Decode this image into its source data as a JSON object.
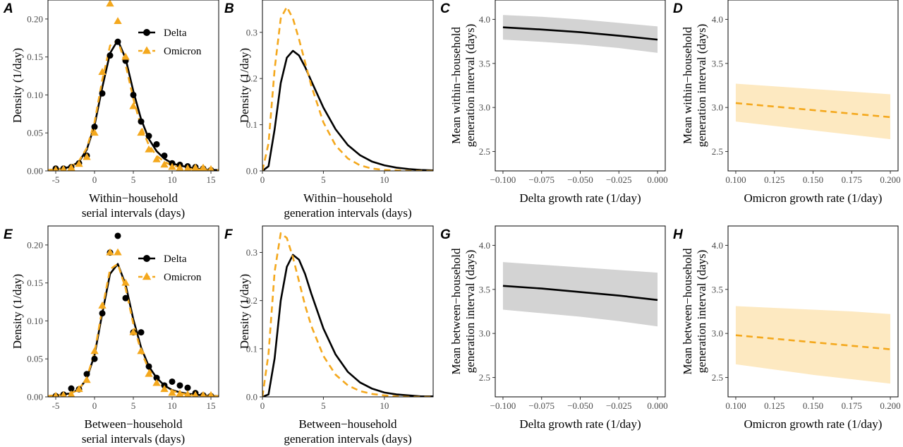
{
  "colors": {
    "delta": "#000000",
    "omicron": "#f4a81d",
    "delta_band": "#d3d3d3",
    "omicron_band": "#fde9c1"
  },
  "chart_data": [
    {
      "panel": "A",
      "type": "line+scatter",
      "xlabel": [
        "Within−household",
        "serial intervals (days)"
      ],
      "ylabel": [
        "Density (1/day)"
      ],
      "xlim": [
        -6,
        16
      ],
      "ylim": [
        0,
        0.225
      ],
      "xticks": [
        -5,
        0,
        5,
        10,
        15
      ],
      "yticks": [
        0,
        0.05,
        0.1,
        0.15,
        0.2
      ],
      "ytick_labels": [
        "0.00",
        "0.05",
        "0.10",
        "0.15",
        "0.20"
      ],
      "legend": {
        "position": "top-right",
        "entries": [
          "Delta",
          "Omicron"
        ]
      },
      "series": [
        {
          "name": "Delta",
          "style": "line-solid",
          "x": [
            -6,
            -5,
            -4,
            -3,
            -2,
            -1,
            0,
            1,
            2,
            3,
            4,
            5,
            6,
            7,
            8,
            9,
            10,
            11,
            12,
            13,
            14,
            15,
            16
          ],
          "values": [
            0.001,
            0.002,
            0.003,
            0.006,
            0.012,
            0.028,
            0.06,
            0.11,
            0.155,
            0.172,
            0.148,
            0.105,
            0.068,
            0.042,
            0.026,
            0.016,
            0.01,
            0.007,
            0.005,
            0.003,
            0.002,
            0.0015,
            0.001
          ]
        },
        {
          "name": "Delta",
          "style": "points-circle",
          "x": [
            -5,
            -4,
            -3,
            -2,
            -1,
            0,
            1,
            2,
            3,
            4,
            5,
            6,
            7,
            8,
            9,
            10,
            11,
            12,
            13,
            14,
            15
          ],
          "values": [
            0.003,
            0.003,
            0.005,
            0.01,
            0.02,
            0.058,
            0.102,
            0.152,
            0.17,
            0.145,
            0.1,
            0.065,
            0.046,
            0.035,
            0.02,
            0.01,
            0.008,
            0.006,
            0.005,
            0.003,
            0.001
          ]
        },
        {
          "name": "Omicron",
          "style": "line-dashed",
          "x": [
            -6,
            -5,
            -4,
            -3,
            -2,
            -1,
            0,
            1,
            2,
            3,
            4,
            5,
            6,
            7,
            8,
            9,
            10,
            11,
            12,
            13,
            14,
            15,
            16
          ],
          "values": [
            0.001,
            0.002,
            0.003,
            0.006,
            0.013,
            0.03,
            0.064,
            0.12,
            0.165,
            0.172,
            0.14,
            0.095,
            0.058,
            0.034,
            0.02,
            0.012,
            0.007,
            0.005,
            0.003,
            0.002,
            0.0015,
            0.001,
            0.001
          ]
        },
        {
          "name": "Omicron",
          "style": "points-triangle",
          "x": [
            -5,
            -4,
            -3,
            -2,
            -1,
            0,
            1,
            2,
            3,
            4,
            5,
            6,
            7,
            8,
            9,
            10,
            11,
            12,
            13,
            14,
            15
          ],
          "values": [
            0.001,
            0.002,
            0.004,
            0.009,
            0.018,
            0.05,
            0.13,
            0.22,
            0.197,
            0.15,
            0.085,
            0.05,
            0.028,
            0.015,
            0.008,
            0.005,
            0.004,
            0.003,
            0.004,
            0.004,
            0.002
          ]
        }
      ]
    },
    {
      "panel": "B",
      "type": "line",
      "xlabel": [
        "Within−household",
        "generation intervals (days)"
      ],
      "ylabel": [
        "Density (1/day)"
      ],
      "xlim": [
        0,
        14
      ],
      "ylim": [
        0,
        0.37
      ],
      "xticks": [
        0,
        5,
        10
      ],
      "yticks": [
        0,
        0.1,
        0.2,
        0.3
      ],
      "ytick_labels": [
        "0.0",
        "0.1",
        "0.2",
        "0.3"
      ],
      "series": [
        {
          "name": "Delta",
          "style": "line-solid",
          "x": [
            0,
            0.5,
            1,
            1.5,
            2,
            2.5,
            3,
            3.5,
            4,
            5,
            6,
            7,
            8,
            9,
            10,
            11,
            12,
            13,
            14
          ],
          "values": [
            0,
            0.01,
            0.09,
            0.19,
            0.245,
            0.26,
            0.25,
            0.225,
            0.195,
            0.137,
            0.09,
            0.056,
            0.034,
            0.02,
            0.012,
            0.007,
            0.004,
            0.002,
            0.001
          ]
        },
        {
          "name": "Omicron",
          "style": "line-dashed",
          "x": [
            0,
            0.5,
            1,
            1.5,
            2,
            2.5,
            3,
            3.5,
            4,
            5,
            6,
            7,
            8,
            9,
            10,
            11,
            12,
            13,
            14
          ],
          "values": [
            0,
            0.06,
            0.22,
            0.33,
            0.355,
            0.33,
            0.285,
            0.235,
            0.185,
            0.105,
            0.055,
            0.027,
            0.012,
            0.005,
            0.002,
            0.001,
            0,
            0,
            0
          ]
        }
      ]
    },
    {
      "panel": "C",
      "type": "line",
      "xlabel": [
        "Delta growth rate (1/day)"
      ],
      "ylabel": [
        "Mean within−household",
        "generation interval (days)"
      ],
      "xlim": [
        -0.105,
        0.005
      ],
      "ylim": [
        2.28,
        4.22
      ],
      "xticks": [
        -0.1,
        -0.075,
        -0.05,
        -0.025,
        0
      ],
      "xtick_labels": [
        "−0.100",
        "−0.075",
        "−0.050",
        "−0.025",
        "0.000"
      ],
      "yticks": [
        2.5,
        3.0,
        3.5,
        4.0
      ],
      "ytick_labels": [
        "2.5",
        "3.0",
        "3.5",
        "4.0"
      ],
      "series": [
        {
          "name": "Delta",
          "style": "line-solid-band",
          "x": [
            -0.1,
            -0.075,
            -0.05,
            -0.025,
            0
          ],
          "values": [
            3.91,
            3.885,
            3.855,
            3.815,
            3.77
          ],
          "lower": [
            3.77,
            3.745,
            3.715,
            3.675,
            3.62
          ],
          "upper": [
            4.05,
            4.03,
            4.0,
            3.96,
            3.92
          ]
        }
      ]
    },
    {
      "panel": "D",
      "type": "line",
      "xlabel": [
        "Omicron growth rate (1/day)"
      ],
      "ylabel": [
        "Mean within−household",
        "generation interval (days)"
      ],
      "xlim": [
        0.095,
        0.205
      ],
      "ylim": [
        2.28,
        4.22
      ],
      "xticks": [
        0.1,
        0.125,
        0.15,
        0.175,
        0.2
      ],
      "xtick_labels": [
        "0.100",
        "0.125",
        "0.150",
        "0.175",
        "0.200"
      ],
      "yticks": [
        2.5,
        3.0,
        3.5,
        4.0
      ],
      "ytick_labels": [
        "2.5",
        "3.0",
        "3.5",
        "4.0"
      ],
      "series": [
        {
          "name": "Omicron",
          "style": "line-dashed-band",
          "x": [
            0.1,
            0.125,
            0.15,
            0.175,
            0.2
          ],
          "values": [
            3.05,
            3.01,
            2.97,
            2.93,
            2.89
          ],
          "lower": [
            2.84,
            2.79,
            2.74,
            2.69,
            2.64
          ],
          "upper": [
            3.27,
            3.24,
            3.21,
            3.18,
            3.15
          ]
        }
      ]
    },
    {
      "panel": "E",
      "type": "line+scatter",
      "xlabel": [
        "Between−household",
        "serial intervals (days)"
      ],
      "ylabel": [
        "Density (1/day)"
      ],
      "xlim": [
        -6,
        16
      ],
      "ylim": [
        0,
        0.225
      ],
      "xticks": [
        -5,
        0,
        5,
        10,
        15
      ],
      "yticks": [
        0,
        0.05,
        0.1,
        0.15,
        0.2
      ],
      "ytick_labels": [
        "0.00",
        "0.05",
        "0.10",
        "0.15",
        "0.20"
      ],
      "legend": {
        "position": "top-right",
        "entries": [
          "Delta",
          "Omicron"
        ]
      },
      "series": [
        {
          "name": "Delta",
          "style": "line-solid",
          "x": [
            -6,
            -5,
            -4,
            -3,
            -2,
            -1,
            0,
            1,
            2,
            3,
            4,
            5,
            6,
            7,
            8,
            9,
            10,
            11,
            12,
            13,
            14,
            15,
            16
          ],
          "values": [
            0.001,
            0.002,
            0.003,
            0.005,
            0.01,
            0.024,
            0.055,
            0.11,
            0.162,
            0.175,
            0.148,
            0.102,
            0.065,
            0.04,
            0.025,
            0.015,
            0.009,
            0.006,
            0.004,
            0.003,
            0.002,
            0.0015,
            0.001
          ]
        },
        {
          "name": "Delta",
          "style": "points-circle",
          "x": [
            -5,
            -4,
            -3,
            -2,
            -1,
            0,
            1,
            2,
            3,
            4,
            5,
            6,
            7,
            8,
            9,
            10,
            11,
            12,
            13,
            14,
            15
          ],
          "values": [
            0.001,
            0.003,
            0.011,
            0.01,
            0.03,
            0.05,
            0.11,
            0.19,
            0.212,
            0.13,
            0.085,
            0.085,
            0.04,
            0.025,
            0.015,
            0.02,
            0.015,
            0.012,
            0.005,
            0.002,
            0.001
          ]
        },
        {
          "name": "Omicron",
          "style": "line-dashed",
          "x": [
            -6,
            -5,
            -4,
            -3,
            -2,
            -1,
            0,
            1,
            2,
            3,
            4,
            5,
            6,
            7,
            8,
            9,
            10,
            11,
            12,
            13,
            14,
            15,
            16
          ],
          "values": [
            0.001,
            0.002,
            0.003,
            0.005,
            0.01,
            0.025,
            0.058,
            0.116,
            0.168,
            0.175,
            0.143,
            0.096,
            0.06,
            0.036,
            0.021,
            0.013,
            0.008,
            0.005,
            0.003,
            0.002,
            0.0015,
            0.001,
            0.001
          ]
        },
        {
          "name": "Omicron",
          "style": "points-triangle",
          "x": [
            -5,
            -4,
            -3,
            -2,
            -1,
            0,
            1,
            2,
            3,
            4,
            5,
            6,
            7,
            8,
            9,
            10,
            11,
            12,
            13,
            14,
            15
          ],
          "values": [
            0.001,
            0.002,
            0.003,
            0.01,
            0.022,
            0.06,
            0.12,
            0.19,
            0.19,
            0.15,
            0.085,
            0.06,
            0.03,
            0.018,
            0.01,
            0.005,
            0.004,
            0.003,
            0.002,
            0.002,
            0.002
          ]
        }
      ]
    },
    {
      "panel": "F",
      "type": "line",
      "xlabel": [
        "Between−household",
        "generation intervals (days)"
      ],
      "ylabel": [
        "Density (1/day)"
      ],
      "xlim": [
        0,
        14
      ],
      "ylim": [
        0,
        0.355
      ],
      "xticks": [
        0,
        5,
        10
      ],
      "yticks": [
        0,
        0.1,
        0.2,
        0.3
      ],
      "ytick_labels": [
        "0.0",
        "0.1",
        "0.2",
        "0.3"
      ],
      "series": [
        {
          "name": "Delta",
          "style": "line-solid",
          "x": [
            0,
            0.5,
            1,
            1.5,
            2,
            2.5,
            3,
            3.5,
            4,
            5,
            6,
            7,
            8,
            9,
            10,
            11,
            12,
            13,
            14
          ],
          "values": [
            0,
            0.005,
            0.08,
            0.2,
            0.27,
            0.295,
            0.285,
            0.255,
            0.215,
            0.142,
            0.088,
            0.052,
            0.03,
            0.017,
            0.009,
            0.005,
            0.003,
            0.001,
            0.001
          ]
        },
        {
          "name": "Omicron",
          "style": "line-dashed",
          "x": [
            0,
            0.5,
            1,
            1.5,
            2,
            2.5,
            3,
            3.5,
            4,
            5,
            6,
            7,
            8,
            9,
            10,
            11,
            12,
            13,
            14
          ],
          "values": [
            0,
            0.09,
            0.26,
            0.34,
            0.33,
            0.29,
            0.24,
            0.19,
            0.148,
            0.085,
            0.046,
            0.024,
            0.012,
            0.006,
            0.003,
            0.001,
            0,
            0,
            0
          ]
        }
      ]
    },
    {
      "panel": "G",
      "type": "line",
      "xlabel": [
        "Delta growth rate (1/day)"
      ],
      "ylabel": [
        "Mean between−household",
        "generation interval (days)"
      ],
      "xlim": [
        -0.105,
        0.005
      ],
      "ylim": [
        2.28,
        4.22
      ],
      "xticks": [
        -0.1,
        -0.075,
        -0.05,
        -0.025,
        0
      ],
      "xtick_labels": [
        "−0.100",
        "−0.075",
        "−0.050",
        "−0.025",
        "0.000"
      ],
      "yticks": [
        2.5,
        3.0,
        3.5,
        4.0
      ],
      "ytick_labels": [
        "2.5",
        "3.0",
        "3.5",
        "4.0"
      ],
      "series": [
        {
          "name": "Delta",
          "style": "line-solid-band",
          "x": [
            -0.1,
            -0.075,
            -0.05,
            -0.025,
            0
          ],
          "values": [
            3.54,
            3.51,
            3.47,
            3.43,
            3.38
          ],
          "lower": [
            3.27,
            3.23,
            3.19,
            3.14,
            3.08
          ],
          "upper": [
            3.81,
            3.78,
            3.75,
            3.72,
            3.69
          ]
        }
      ]
    },
    {
      "panel": "H",
      "type": "line",
      "xlabel": [
        "Omicron growth rate (1/day)"
      ],
      "ylabel": [
        "Mean between−household",
        "generation interval (days)"
      ],
      "xlim": [
        0.095,
        0.205
      ],
      "ylim": [
        2.28,
        4.22
      ],
      "xticks": [
        0.1,
        0.125,
        0.15,
        0.175,
        0.2
      ],
      "xtick_labels": [
        "0.100",
        "0.125",
        "0.150",
        "0.175",
        "0.200"
      ],
      "yticks": [
        2.5,
        3.0,
        3.5,
        4.0
      ],
      "ytick_labels": [
        "2.5",
        "3.0",
        "3.5",
        "4.0"
      ],
      "series": [
        {
          "name": "Omicron",
          "style": "line-dashed-band",
          "x": [
            0.1,
            0.125,
            0.15,
            0.175,
            0.2
          ],
          "values": [
            2.98,
            2.94,
            2.9,
            2.86,
            2.82
          ],
          "lower": [
            2.65,
            2.59,
            2.53,
            2.48,
            2.43
          ],
          "upper": [
            3.31,
            3.29,
            3.27,
            3.25,
            3.22
          ]
        }
      ]
    }
  ]
}
